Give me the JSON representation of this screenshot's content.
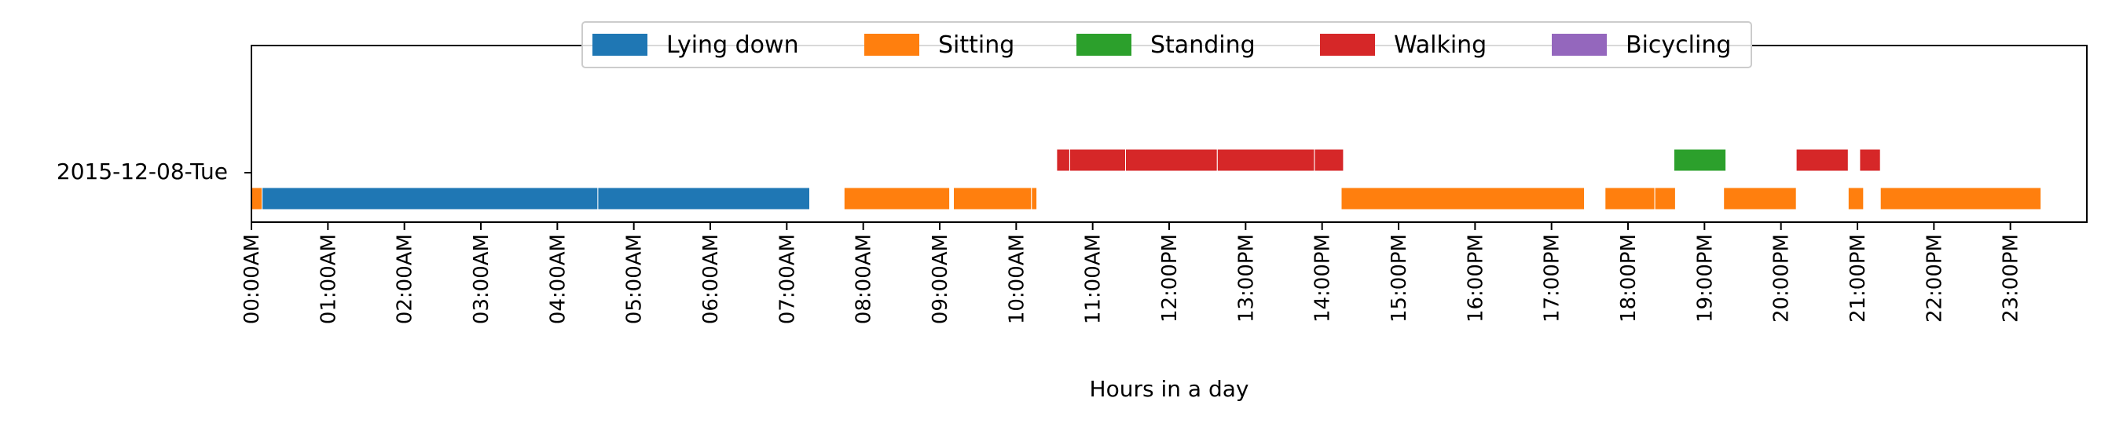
{
  "chart_data": {
    "type": "timeline",
    "xlabel": "Hours in a day",
    "xlim": [
      0,
      24
    ],
    "row_label": "2015-12-08-Tue",
    "x_ticks": [
      "00:00AM",
      "01:00AM",
      "02:00AM",
      "03:00AM",
      "04:00AM",
      "05:00AM",
      "06:00AM",
      "07:00AM",
      "08:00AM",
      "09:00AM",
      "10:00AM",
      "11:00AM",
      "12:00PM",
      "13:00PM",
      "14:00PM",
      "15:00PM",
      "16:00PM",
      "17:00PM",
      "18:00PM",
      "19:00PM",
      "20:00PM",
      "21:00PM",
      "22:00PM",
      "23:00PM"
    ],
    "legend_position": "top-center",
    "categories": [
      {
        "name": "Lying down",
        "color": "#1f77b4",
        "level": "low"
      },
      {
        "name": "Sitting",
        "color": "#ff7f0e",
        "level": "low"
      },
      {
        "name": "Standing",
        "color": "#2ca02c",
        "level": "high"
      },
      {
        "name": "Walking",
        "color": "#d62728",
        "level": "high"
      },
      {
        "name": "Bicycling",
        "color": "#9467bd",
        "level": "high"
      }
    ],
    "segments": [
      {
        "activity": "Sitting",
        "start": 0.0,
        "end": 0.14
      },
      {
        "activity": "Lying down",
        "start": 0.14,
        "end": 4.53
      },
      {
        "activity": "Lying down",
        "start": 4.53,
        "end": 7.3
      },
      {
        "activity": "Sitting",
        "start": 7.75,
        "end": 9.13
      },
      {
        "activity": "Sitting",
        "start": 9.18,
        "end": 10.2
      },
      {
        "activity": "Sitting",
        "start": 10.2,
        "end": 10.27
      },
      {
        "activity": "Walking",
        "start": 10.53,
        "end": 10.7
      },
      {
        "activity": "Walking",
        "start": 10.7,
        "end": 11.43
      },
      {
        "activity": "Walking",
        "start": 11.43,
        "end": 12.63
      },
      {
        "activity": "Walking",
        "start": 12.63,
        "end": 13.9
      },
      {
        "activity": "Walking",
        "start": 13.9,
        "end": 14.28
      },
      {
        "activity": "Sitting",
        "start": 14.25,
        "end": 17.43
      },
      {
        "activity": "Sitting",
        "start": 17.7,
        "end": 18.35
      },
      {
        "activity": "Sitting",
        "start": 18.35,
        "end": 18.62
      },
      {
        "activity": "Standing",
        "start": 18.6,
        "end": 19.28
      },
      {
        "activity": "Sitting",
        "start": 19.25,
        "end": 20.2
      },
      {
        "activity": "Walking",
        "start": 20.2,
        "end": 20.88
      },
      {
        "activity": "Sitting",
        "start": 20.88,
        "end": 21.08
      },
      {
        "activity": "Walking",
        "start": 21.03,
        "end": 21.3
      },
      {
        "activity": "Sitting",
        "start": 21.3,
        "end": 23.4
      }
    ]
  }
}
